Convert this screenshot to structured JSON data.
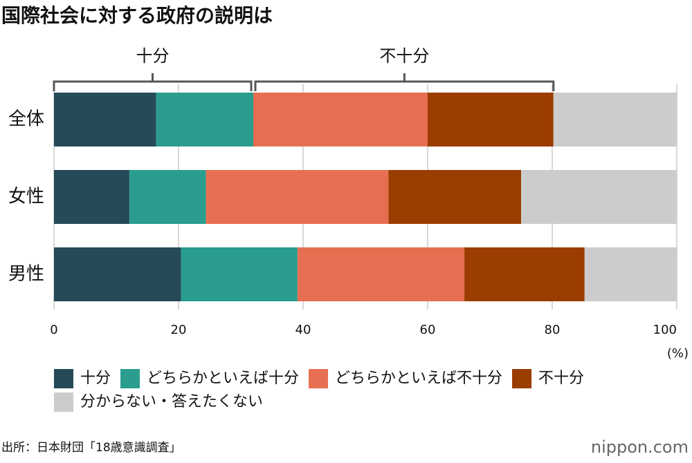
{
  "chart_data": {
    "type": "stacked-barh",
    "title": "国際社会に対する政府の説明は",
    "categories": [
      "全体",
      "女性",
      "男性"
    ],
    "series": [
      {
        "name": "十分",
        "color": "#264a57",
        "values": [
          16.4,
          12.1,
          20.4
        ]
      },
      {
        "name": "どちらかといえば十分",
        "color": "#2a9d8f",
        "values": [
          15.6,
          12.3,
          18.7
        ]
      },
      {
        "name": "どちらかといえば不十分",
        "color": "#e76f51",
        "values": [
          28.0,
          29.3,
          26.8
        ]
      },
      {
        "name": "不十分",
        "color": "#9b3c00",
        "values": [
          20.2,
          21.3,
          19.3
        ]
      },
      {
        "name": "分からない・答えたくない",
        "color": "#cccccc",
        "values": [
          19.8,
          25.0,
          14.8
        ]
      }
    ],
    "brackets": [
      {
        "label": "十分"
      },
      {
        "label": "不十分"
      }
    ],
    "xlim": [
      0,
      100
    ],
    "xticks": [
      0,
      20,
      40,
      60,
      80,
      100
    ],
    "x_label": "(%)",
    "grid": true,
    "legend": "bottom",
    "source": "出所：日本財団「18歳意識調査」",
    "logo": "nippon.com"
  }
}
